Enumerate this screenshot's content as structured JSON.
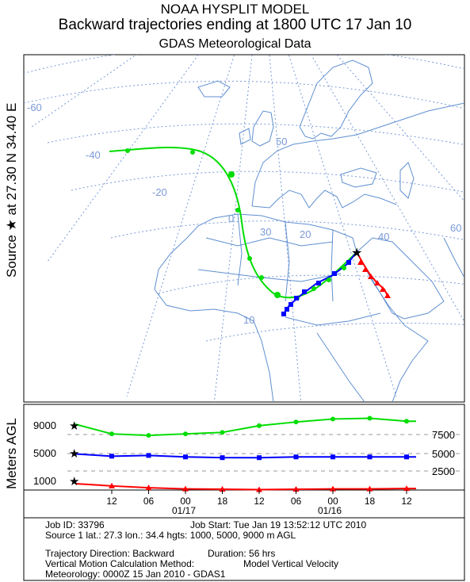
{
  "header": {
    "model": "NOAA HYSPLIT MODEL",
    "title": "Backward trajectories ending at 1800 UTC 17 Jan 10",
    "data_source": "GDAS Meteorological Data"
  },
  "source_label": "Source ★ at  27.30 N  34.40 E",
  "meters_label": "Meters AGL",
  "map": {
    "lon_labels": [
      "-60",
      "-40",
      "-20",
      "0",
      "20",
      "40",
      "60"
    ],
    "lat_labels": [
      "50",
      "30",
      "10"
    ],
    "colors": {
      "grid": "#7a9ad6",
      "coast": "#5f8fd0",
      "red": "#ff0000",
      "blue": "#0000ff",
      "green": "#00dd00"
    }
  },
  "profile": {
    "left_ticks": [
      "9000",
      "5000",
      "1000"
    ],
    "right_ticks": [
      "7500",
      "5000",
      "2500"
    ],
    "time_ticks": [
      "12",
      "06",
      "00",
      "18",
      "12",
      "06",
      "00",
      "18",
      "12"
    ],
    "date_labels": [
      "01/17",
      "01/16"
    ]
  },
  "info": {
    "job_id": "Job ID: 33796",
    "job_start": "Job Start: Tue Jan 19 13:52:12 UTC 2010",
    "source_line": "Source 1 lat.: 27.3  lon.: 34.4  hgts: 1000, 5000, 9000 m AGL",
    "direction": "Trajectory Direction: Backward",
    "duration": "Duration: 56 hrs",
    "vertical_method": "Vertical Motion Calculation Method:",
    "vertical_value": "Model Vertical Velocity",
    "meteorology": "Meteorology: 0000Z 15 Jan 2010 - GDAS1"
  },
  "chart_data": {
    "type": "line",
    "title": "Backward trajectories ending at 1800 UTC 17 Jan 10",
    "x": [
      "12",
      "06",
      "00",
      "18",
      "12",
      "06",
      "00",
      "18",
      "12"
    ],
    "ylabel": "Meters AGL",
    "series": [
      {
        "name": "1000 m",
        "values": [
          700,
          450,
          300,
          250,
          200,
          250,
          300,
          300,
          350
        ]
      },
      {
        "name": "5000 m",
        "values": [
          4700,
          4800,
          4600,
          4500,
          4500,
          4600,
          4600,
          4600,
          4600
        ]
      },
      {
        "name": "9000 m",
        "values": [
          7700,
          7500,
          7700,
          7900,
          8800,
          9300,
          9700,
          9800,
          9400
        ]
      }
    ]
  }
}
